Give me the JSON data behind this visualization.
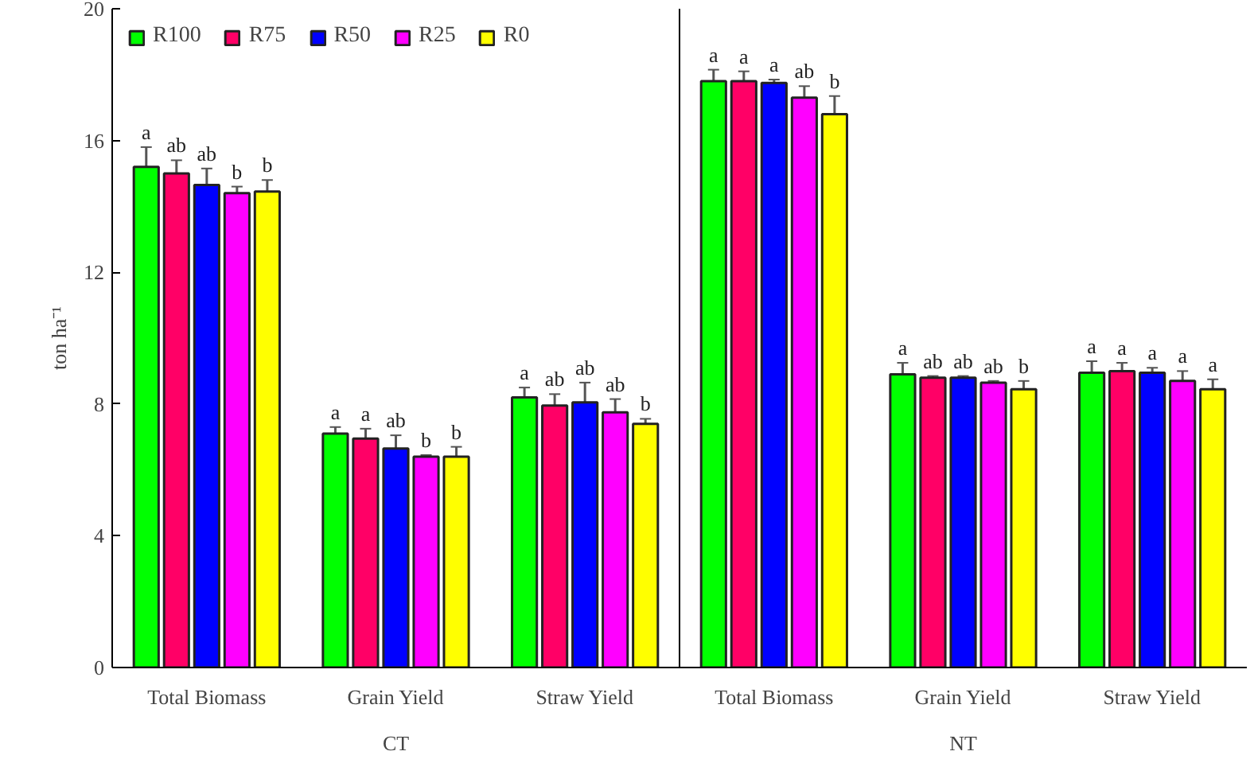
{
  "chart_data": {
    "type": "bar",
    "ylabel": "ton ha⁻¹",
    "categories": [
      "Total Biomass",
      "Grain Yield",
      "Straw Yield",
      "Total Biomass",
      "Grain Yield",
      "Straw Yield"
    ],
    "annotations": [
      "CT",
      "NT"
    ],
    "ylim": [
      0,
      20
    ],
    "yticks": [
      0,
      4,
      8,
      12,
      16,
      20
    ],
    "grid": false,
    "legend": "top left",
    "series": [
      {
        "name": "R100",
        "color": "#00ff00",
        "values": [
          15.2,
          7.1,
          8.2,
          17.8,
          8.9,
          8.95
        ],
        "errors": [
          0.6,
          0.2,
          0.3,
          0.35,
          0.35,
          0.35
        ],
        "value_labels": [
          "a",
          "a",
          "a",
          "a",
          "a",
          "a"
        ]
      },
      {
        "name": "R75",
        "color": "#ff0066",
        "values": [
          15.0,
          6.95,
          7.95,
          17.8,
          8.8,
          9.0
        ],
        "errors": [
          0.4,
          0.3,
          0.35,
          0.3,
          0.05,
          0.25
        ],
        "value_labels": [
          "ab",
          "a",
          "ab",
          "a",
          "ab",
          "a"
        ]
      },
      {
        "name": "R50",
        "color": "#0000ff",
        "values": [
          14.65,
          6.65,
          8.05,
          17.75,
          8.8,
          8.95
        ],
        "errors": [
          0.5,
          0.4,
          0.6,
          0.1,
          0.05,
          0.15
        ],
        "value_labels": [
          "ab",
          "ab",
          "ab",
          "a",
          "ab",
          "a"
        ]
      },
      {
        "name": "R25",
        "color": "#ff00ff",
        "values": [
          14.4,
          6.4,
          7.75,
          17.3,
          8.65,
          8.7
        ],
        "errors": [
          0.2,
          0.05,
          0.4,
          0.35,
          0.05,
          0.3
        ],
        "value_labels": [
          "b",
          "b",
          "ab",
          "ab",
          "ab",
          "a"
        ]
      },
      {
        "name": "R0",
        "color": "#ffff00",
        "values": [
          14.45,
          6.4,
          7.4,
          16.8,
          8.45,
          8.45
        ],
        "errors": [
          0.35,
          0.3,
          0.15,
          0.55,
          0.25,
          0.3
        ],
        "value_labels": [
          "b",
          "b",
          "b",
          "b",
          "b",
          "a"
        ]
      }
    ]
  }
}
